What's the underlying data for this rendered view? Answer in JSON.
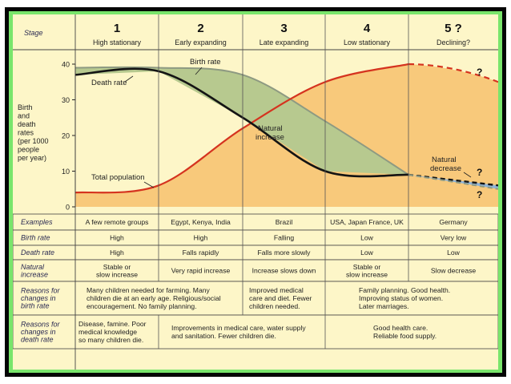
{
  "header": {
    "stage_label": "Stage"
  },
  "stages": [
    {
      "num": "1",
      "name": "High stationary"
    },
    {
      "num": "2",
      "name": "Early expanding"
    },
    {
      "num": "3",
      "name": "Late expanding"
    },
    {
      "num": "4",
      "name": "Low stationary"
    },
    {
      "num": "5 ?",
      "name": "Declining?"
    }
  ],
  "y_axis": {
    "label_lines": [
      "Birth",
      "and",
      "death",
      "rates",
      "(per 1000",
      "people",
      "per year)"
    ],
    "ticks": [
      "40",
      "30",
      "20",
      "10",
      "0"
    ]
  },
  "annotations": {
    "birth_rate": "Birth rate",
    "death_rate": "Death rate",
    "natural_increase_1": "Natural",
    "natural_increase_2": "increase",
    "total_population": "Total population",
    "natural_decrease_1": "Natural",
    "natural_decrease_2": "decrease",
    "q1": "?",
    "q2": "?",
    "q3": "?"
  },
  "colors": {
    "birth_fill": "#b7c98f",
    "birth_line": "#8e9a82",
    "pop_fill": "#f8c97b",
    "pop_line": "#d5331f",
    "death_line": "#141414",
    "decrease_fill": "#8fb4d8",
    "chart_bg": "#fdf6c8"
  },
  "chart_data": {
    "type": "line",
    "x": [
      0,
      1,
      2,
      3,
      4,
      5
    ],
    "ylabel": "Birth and death rates (per 1000 people per year)",
    "ylim": [
      0,
      40
    ],
    "series": [
      {
        "name": "Birth rate",
        "values": [
          39,
          39,
          37,
          24,
          9,
          5
        ]
      },
      {
        "name": "Death rate",
        "values": [
          37,
          38,
          25,
          10,
          9,
          6
        ]
      },
      {
        "name": "Total population",
        "values": [
          4,
          6,
          22,
          35,
          40,
          35
        ]
      }
    ]
  },
  "table": {
    "rows": [
      {
        "label": [
          "Examples"
        ],
        "cells": [
          [
            "A few remote groups"
          ],
          [
            "Egypt, Kenya, India"
          ],
          [
            "Brazil"
          ],
          [
            "USA, Japan France, UK"
          ],
          [
            "Germany"
          ]
        ]
      },
      {
        "label": [
          "Birth rate"
        ],
        "cells": [
          [
            "High"
          ],
          [
            "High"
          ],
          [
            "Falling"
          ],
          [
            "Low"
          ],
          [
            "Very low"
          ]
        ]
      },
      {
        "label": [
          "Death rate"
        ],
        "cells": [
          [
            "High"
          ],
          [
            "Falls rapidly"
          ],
          [
            "Falls more slowly"
          ],
          [
            "Low"
          ],
          [
            "Low"
          ]
        ]
      },
      {
        "label": [
          "Natural",
          "increase"
        ],
        "cells": [
          [
            "Stable or",
            "slow increase"
          ],
          [
            "Very rapid increase"
          ],
          [
            "Increase slows down"
          ],
          [
            "Stable or",
            "slow increase"
          ],
          [
            "Slow decrease"
          ]
        ]
      }
    ],
    "reasons_birth": {
      "label": [
        "Reasons for",
        "changes in",
        "birth rate"
      ],
      "col12": [
        "Many children needed for farming. Many",
        "children die at an early age. Religious/social",
        "encouragement. No family planning."
      ],
      "col3": [
        "Improved medical",
        "care and diet. Fewer",
        "children needed."
      ],
      "col45": [
        "Family planning. Good health.",
        "Improving status of women.",
        "Later marriages."
      ]
    },
    "reasons_death": {
      "label": [
        "Reasons for",
        "changes in",
        "death rate"
      ],
      "col1": [
        "Disease, famine. Poor",
        "medical knowledge",
        "so many children die."
      ],
      "col23": [
        "Improvements in medical care, water supply",
        "and sanitation. Fewer children die."
      ],
      "col45": [
        "Good health care.",
        "Reliable food supply."
      ]
    }
  }
}
